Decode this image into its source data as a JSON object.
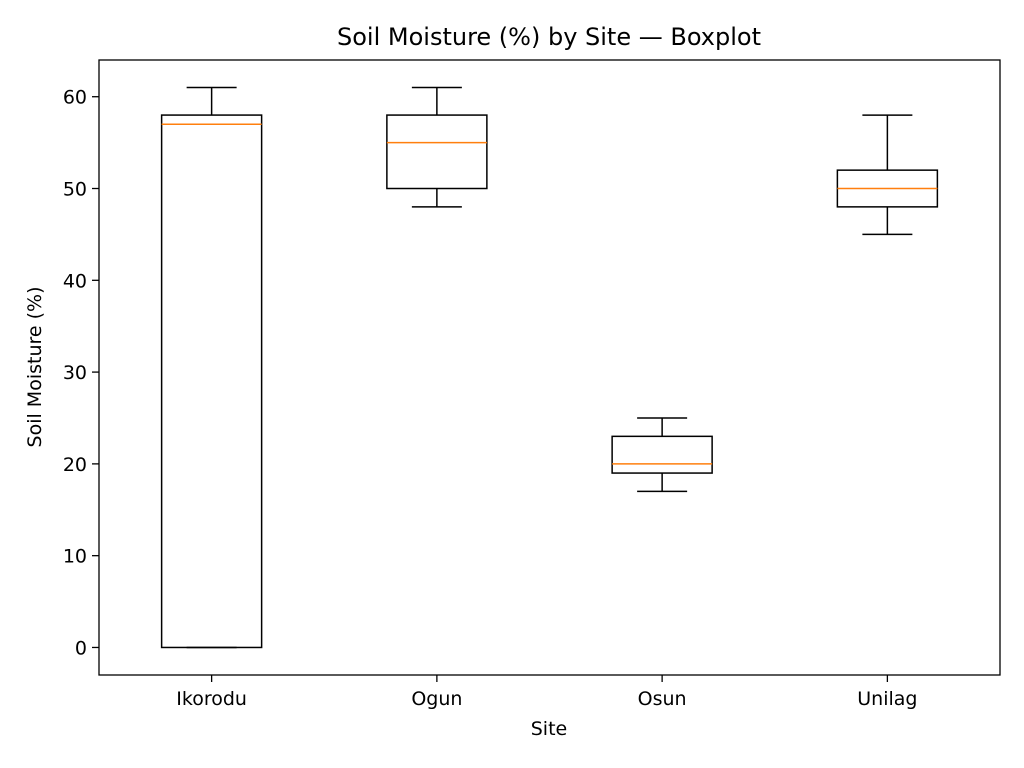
{
  "chart_data": {
    "type": "boxplot",
    "title": "Soil Moisture (%) by Site — Boxplot",
    "xlabel": "Site",
    "ylabel": "Soil Moisture (%)",
    "ylim": [
      -3,
      64
    ],
    "yticks": [
      0,
      10,
      20,
      30,
      40,
      50,
      60
    ],
    "grid": false,
    "categories": [
      "Ikorodu",
      "Ogun",
      "Osun",
      "Unilag"
    ],
    "boxes": [
      {
        "name": "Ikorodu",
        "whisker_low": 0,
        "q1": 0,
        "median": 57,
        "q3": 58,
        "whisker_high": 61
      },
      {
        "name": "Ogun",
        "whisker_low": 48,
        "q1": 50,
        "median": 55,
        "q3": 58,
        "whisker_high": 61
      },
      {
        "name": "Osun",
        "whisker_low": 17,
        "q1": 19,
        "median": 20,
        "q3": 23,
        "whisker_high": 25
      },
      {
        "name": "Unilag",
        "whisker_low": 45,
        "q1": 48,
        "median": 50,
        "q3": 52,
        "whisker_high": 58
      }
    ],
    "colors": {
      "box": "#000000",
      "median": "#ff7f0e"
    }
  }
}
